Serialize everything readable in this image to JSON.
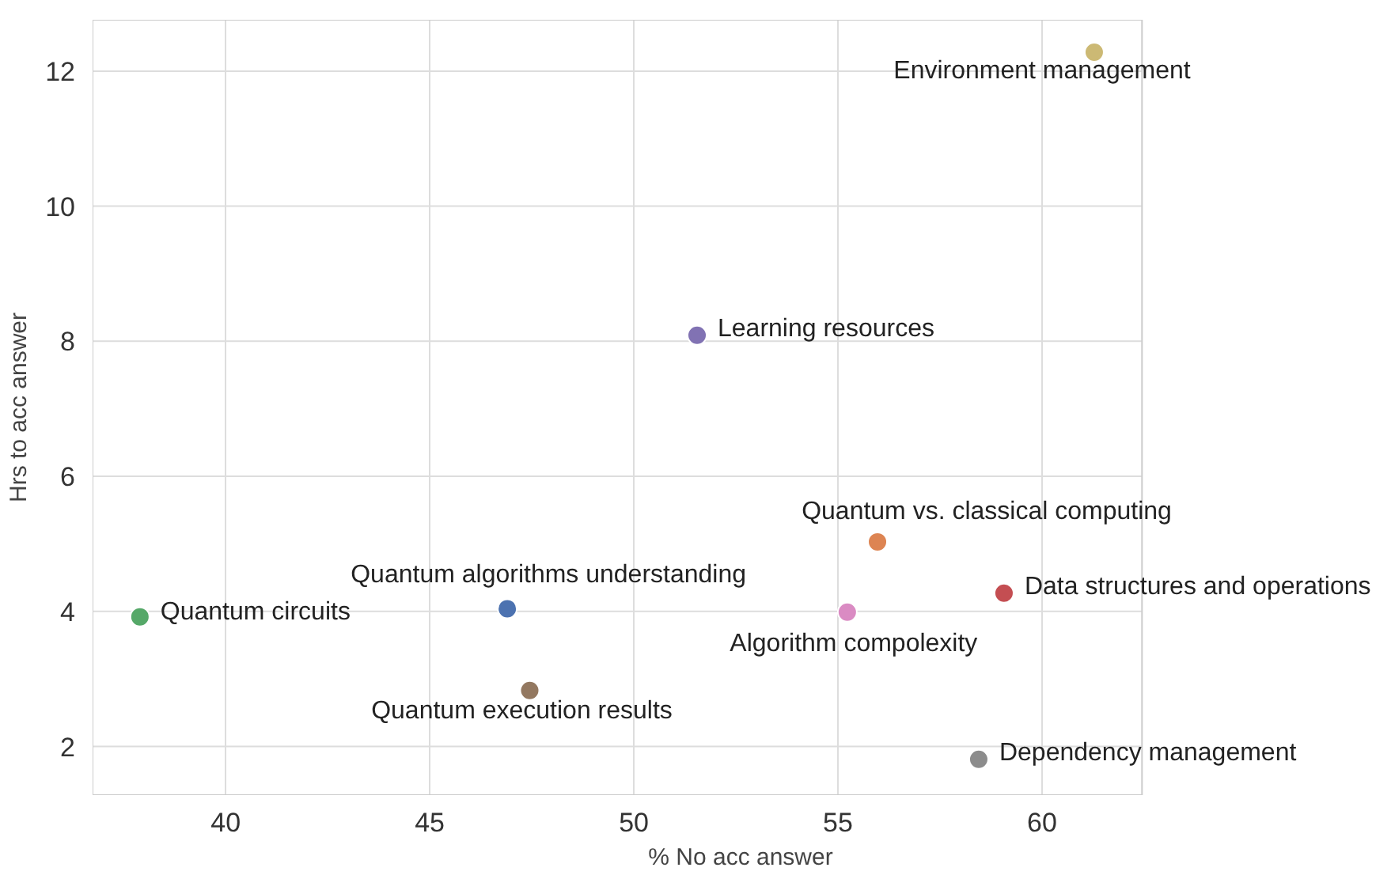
{
  "chart_data": {
    "type": "scatter",
    "xlabel": "% No acc answer",
    "ylabel": "Hrs to acc answer",
    "x": [
      61.28,
      51.55,
      55.97,
      59.07,
      55.23,
      46.9,
      37.9,
      47.45,
      58.45
    ],
    "values": [
      12.28,
      8.09,
      5.03,
      4.27,
      3.99,
      4.04,
      3.92,
      2.83,
      1.81
    ],
    "colors": [
      "#ccb974",
      "#8172b3",
      "#dd8452",
      "#c44e52",
      "#da8bc3",
      "#4c72b0",
      "#55a868",
      "#937860",
      "#8c8c8c"
    ],
    "xlim": [
      36.74,
      62.45
    ],
    "ylim": [
      1.28,
      12.76
    ],
    "xticks": [
      40,
      45,
      50,
      55,
      60
    ],
    "yticks": [
      2,
      4,
      6,
      8,
      10,
      12
    ],
    "grid": true,
    "marker": "circle",
    "annotations": [
      {
        "text": "Environment management",
        "x": 61.28,
        "y": 12.28
      },
      {
        "text": "Learning resources",
        "x": 51.55,
        "y": 8.09
      },
      {
        "text": "Quantum vs. classical computing",
        "x": 55.97,
        "y": 5.03
      },
      {
        "text": "Data structures and operations",
        "x": 59.07,
        "y": 4.27
      },
      {
        "text": "Algorithm compolexity",
        "x": 55.23,
        "y": 3.99
      },
      {
        "text": "Quantum algorithms understanding",
        "x": 46.9,
        "y": 4.04
      },
      {
        "text": "Quantum circuits",
        "x": 37.9,
        "y": 3.92
      },
      {
        "text": "Quantum execution results",
        "x": 47.45,
        "y": 2.83
      },
      {
        "text": "Dependency management",
        "x": 58.45,
        "y": 1.81
      }
    ]
  }
}
